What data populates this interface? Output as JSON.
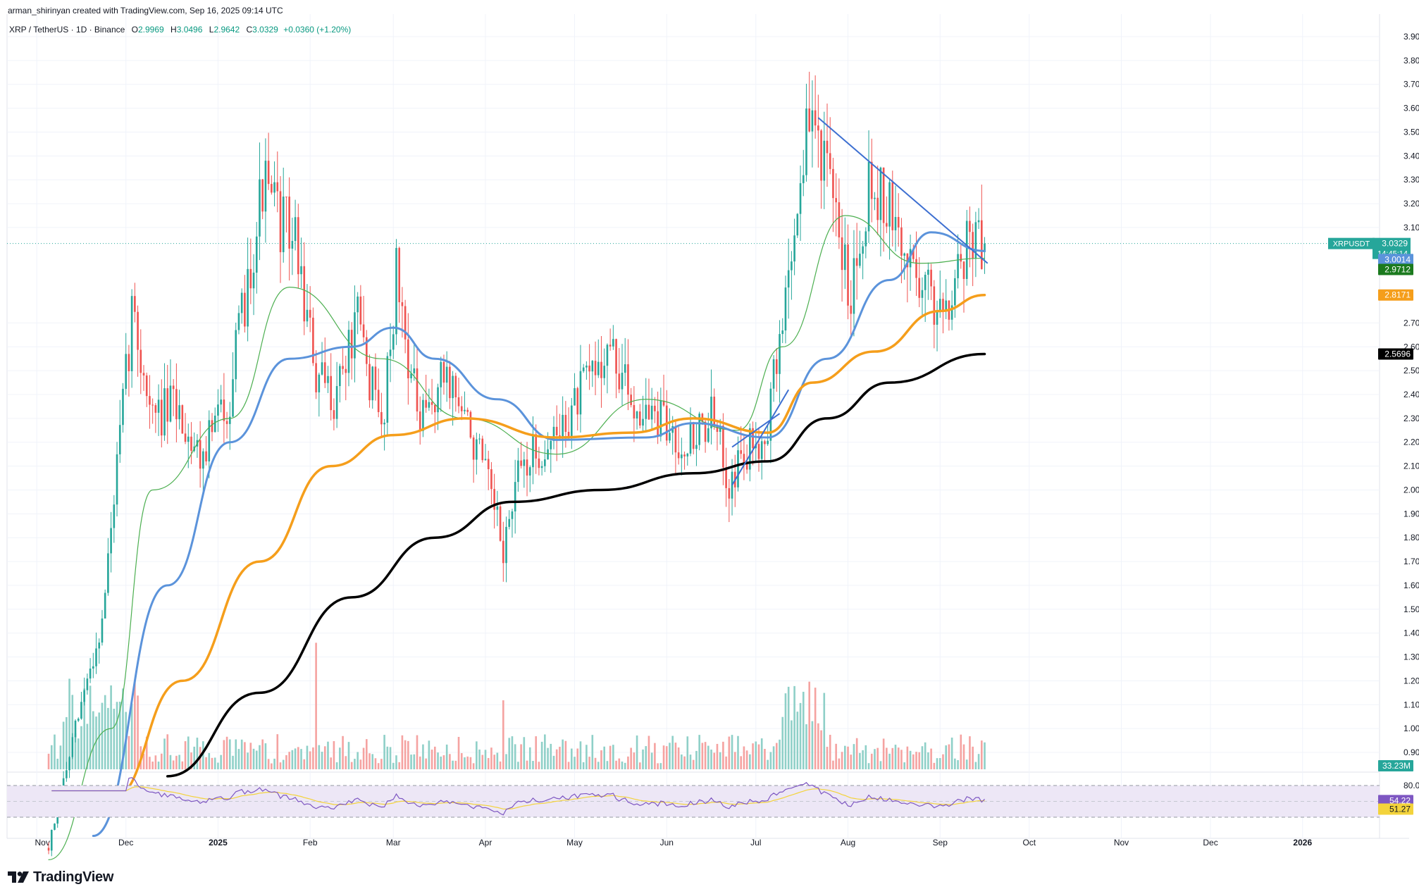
{
  "attribution": "arman_shirinyan created with TradingView.com, Sep 16, 2025 09:14 UTC",
  "brand": "TradingView",
  "colors": {
    "up": "#26a69a",
    "down": "#ef5350",
    "up_vol": "#8fd0c8",
    "down_vol": "#f5a3a1",
    "ma20": "#4caf50",
    "ma50": "#5b93db",
    "ma100": "#f59e1b",
    "ma200": "#000000",
    "trend": "#3d6fd1",
    "rsi": "#7e57c2",
    "rsi_ma": "#f3d33b",
    "rsi_band": "#ede7f6",
    "grid": "#f0f3fa",
    "axis_text": "#131722"
  },
  "legend": {
    "symbol": "XRP / TetherUS · 1D · Binance",
    "o_label": "O",
    "o": "2.9969",
    "h_label": "H",
    "h": "3.0496",
    "l_label": "L",
    "l": "2.9642",
    "c_label": "C",
    "c": "3.0329",
    "change": "+0.0360 (+1.20%)"
  },
  "price_axis": {
    "ticks": [
      "3.9000",
      "3.8000",
      "3.7000",
      "3.6000",
      "3.5000",
      "3.4000",
      "3.3000",
      "3.2000",
      "3.1000",
      "2.7000",
      "2.6000",
      "2.5000",
      "2.4000",
      "2.3000",
      "2.2000",
      "2.1000",
      "2.0000",
      "1.9000",
      "1.8000",
      "1.7000",
      "1.6000",
      "1.5000",
      "1.4000",
      "1.3000",
      "1.2000",
      "1.1000",
      "1.0000",
      "0.9000"
    ],
    "labels": {
      "symbol_tag": "XRPUSDT",
      "last_price": "3.0329",
      "countdown": "14:45:14",
      "ma50_value": "3.0014",
      "ma20_value": "2.9712",
      "ma100_value": "2.8171",
      "ma200_value": "2.5696",
      "volume_value": "33.23M"
    }
  },
  "rsi_axis": {
    "ticks": [
      "80.00"
    ],
    "rsi_value": "54.22",
    "rsi_ma_value": "51.27"
  },
  "time_axis": [
    "Nov",
    "Dec",
    "2025",
    "Feb",
    "Mar",
    "Apr",
    "May",
    "Jun",
    "Jul",
    "Aug",
    "Sep",
    "Oct",
    "Nov",
    "Dec",
    "2026"
  ],
  "chart_data": {
    "type": "candlestick",
    "symbol": "XRP / TetherUS",
    "interval": "1D",
    "exchange": "Binance",
    "ylim": [
      0.86,
      4.0
    ],
    "x_range": [
      "2024-10-22",
      "2026-01-25"
    ],
    "ohlc_keypoints": [
      {
        "date": "2024-11-05",
        "price": 0.5
      },
      {
        "date": "2024-11-16",
        "price": 1.1
      },
      {
        "date": "2024-11-23",
        "price": 1.45
      },
      {
        "date": "2024-12-02",
        "price": 2.6
      },
      {
        "date": "2024-12-03",
        "price": 2.75
      },
      {
        "date": "2024-12-10",
        "price": 2.3
      },
      {
        "date": "2024-12-18",
        "price": 2.35
      },
      {
        "date": "2024-12-26",
        "price": 2.15
      },
      {
        "date": "2025-01-05",
        "price": 2.4
      },
      {
        "date": "2025-01-16",
        "price": 3.28
      },
      {
        "date": "2025-01-21",
        "price": 3.15
      },
      {
        "date": "2025-01-27",
        "price": 3.05
      },
      {
        "date": "2025-02-02",
        "price": 2.55
      },
      {
        "date": "2025-02-03",
        "price": 2.45
      },
      {
        "date": "2025-02-09",
        "price": 2.4
      },
      {
        "date": "2025-02-17",
        "price": 2.7
      },
      {
        "date": "2025-02-25",
        "price": 2.25
      },
      {
        "date": "2025-03-02",
        "price": 2.9
      },
      {
        "date": "2025-03-10",
        "price": 2.25
      },
      {
        "date": "2025-03-19",
        "price": 2.5
      },
      {
        "date": "2025-03-31",
        "price": 2.1
      },
      {
        "date": "2025-04-07",
        "price": 1.75
      },
      {
        "date": "2025-04-13",
        "price": 2.1
      },
      {
        "date": "2025-04-25",
        "price": 2.22
      },
      {
        "date": "2025-05-12",
        "price": 2.6
      },
      {
        "date": "2025-05-20",
        "price": 2.38
      },
      {
        "date": "2025-06-02",
        "price": 2.25
      },
      {
        "date": "2025-06-08",
        "price": 2.2
      },
      {
        "date": "2025-06-16",
        "price": 2.3
      },
      {
        "date": "2025-06-22",
        "price": 2.05
      },
      {
        "date": "2025-07-01",
        "price": 2.2
      },
      {
        "date": "2025-07-05",
        "price": 2.28
      },
      {
        "date": "2025-07-11",
        "price": 2.8
      },
      {
        "date": "2025-07-18",
        "price": 3.5
      },
      {
        "date": "2025-07-22",
        "price": 3.52
      },
      {
        "date": "2025-07-27",
        "price": 3.15
      },
      {
        "date": "2025-08-02",
        "price": 2.85
      },
      {
        "date": "2025-08-08",
        "price": 3.3
      },
      {
        "date": "2025-08-14",
        "price": 3.2
      },
      {
        "date": "2025-08-19",
        "price": 3.0
      },
      {
        "date": "2025-08-23",
        "price": 2.95
      },
      {
        "date": "2025-08-30",
        "price": 2.78
      },
      {
        "date": "2025-09-05",
        "price": 2.85
      },
      {
        "date": "2025-09-11",
        "price": 3.08
      },
      {
        "date": "2025-09-16",
        "price": 3.0329
      }
    ],
    "moving_averages": [
      {
        "name": "MA20",
        "last": 2.9712,
        "points": [
          {
            "date": "2024-11-05",
            "price": 0.45
          },
          {
            "date": "2024-11-26",
            "price": 1.0
          },
          {
            "date": "2024-12-10",
            "price": 2.0
          },
          {
            "date": "2025-01-05",
            "price": 2.3
          },
          {
            "date": "2025-01-25",
            "price": 2.85
          },
          {
            "date": "2025-02-25",
            "price": 2.55
          },
          {
            "date": "2025-03-25",
            "price": 2.3
          },
          {
            "date": "2025-04-25",
            "price": 2.15
          },
          {
            "date": "2025-05-25",
            "price": 2.38
          },
          {
            "date": "2025-06-25",
            "price": 2.25
          },
          {
            "date": "2025-07-10",
            "price": 2.6
          },
          {
            "date": "2025-07-31",
            "price": 3.15
          },
          {
            "date": "2025-08-25",
            "price": 2.95
          },
          {
            "date": "2025-09-16",
            "price": 2.9712
          }
        ]
      },
      {
        "name": "MA50",
        "last": 3.0014,
        "points": [
          {
            "date": "2024-11-20",
            "price": 0.55
          },
          {
            "date": "2024-12-15",
            "price": 1.6
          },
          {
            "date": "2025-01-05",
            "price": 2.2
          },
          {
            "date": "2025-01-25",
            "price": 2.55
          },
          {
            "date": "2025-02-15",
            "price": 2.6
          },
          {
            "date": "2025-03-01",
            "price": 2.68
          },
          {
            "date": "2025-03-15",
            "price": 2.55
          },
          {
            "date": "2025-04-05",
            "price": 2.38
          },
          {
            "date": "2025-04-25",
            "price": 2.21
          },
          {
            "date": "2025-05-25",
            "price": 2.22
          },
          {
            "date": "2025-06-10",
            "price": 2.28
          },
          {
            "date": "2025-07-05",
            "price": 2.22
          },
          {
            "date": "2025-07-25",
            "price": 2.55
          },
          {
            "date": "2025-08-15",
            "price": 2.88
          },
          {
            "date": "2025-08-29",
            "price": 3.08
          },
          {
            "date": "2025-09-16",
            "price": 3.0014
          }
        ]
      },
      {
        "name": "MA100",
        "last": 2.8171,
        "points": [
          {
            "date": "2024-11-26",
            "price": 0.7
          },
          {
            "date": "2024-12-20",
            "price": 1.2
          },
          {
            "date": "2025-01-15",
            "price": 1.7
          },
          {
            "date": "2025-02-08",
            "price": 2.1
          },
          {
            "date": "2025-03-01",
            "price": 2.23
          },
          {
            "date": "2025-03-25",
            "price": 2.3
          },
          {
            "date": "2025-04-25",
            "price": 2.22
          },
          {
            "date": "2025-05-20",
            "price": 2.24
          },
          {
            "date": "2025-06-10",
            "price": 2.3
          },
          {
            "date": "2025-07-05",
            "price": 2.24
          },
          {
            "date": "2025-07-20",
            "price": 2.45
          },
          {
            "date": "2025-08-10",
            "price": 2.58
          },
          {
            "date": "2025-09-01",
            "price": 2.75
          },
          {
            "date": "2025-09-16",
            "price": 2.8171
          }
        ]
      },
      {
        "name": "MA200",
        "last": 2.5696,
        "points": [
          {
            "date": "2024-12-15",
            "price": 0.8
          },
          {
            "date": "2025-01-15",
            "price": 1.15
          },
          {
            "date": "2025-02-15",
            "price": 1.55
          },
          {
            "date": "2025-03-15",
            "price": 1.8
          },
          {
            "date": "2025-04-10",
            "price": 1.95
          },
          {
            "date": "2025-05-10",
            "price": 2.0
          },
          {
            "date": "2025-06-10",
            "price": 2.07
          },
          {
            "date": "2025-07-05",
            "price": 2.12
          },
          {
            "date": "2025-07-25",
            "price": 2.3
          },
          {
            "date": "2025-08-15",
            "price": 2.45
          },
          {
            "date": "2025-09-16",
            "price": 2.5696
          }
        ]
      }
    ],
    "trendlines": [
      {
        "name": "descending-resistance",
        "from": {
          "date": "2025-07-22",
          "price": 3.56
        },
        "to": {
          "date": "2025-09-17",
          "price": 2.95
        }
      },
      {
        "name": "ascending-channel-low",
        "from": {
          "date": "2025-06-23",
          "price": 2.02
        },
        "to": {
          "date": "2025-07-12",
          "price": 2.42
        }
      },
      {
        "name": "ascending-channel-high",
        "from": {
          "date": "2025-06-23",
          "price": 2.18
        },
        "to": {
          "date": "2025-07-09",
          "price": 2.32
        }
      }
    ],
    "volume_last": "33.23M",
    "rsi": {
      "value": 54.22,
      "ma": 51.27,
      "upper_band": 80,
      "lower_band": 20
    }
  }
}
